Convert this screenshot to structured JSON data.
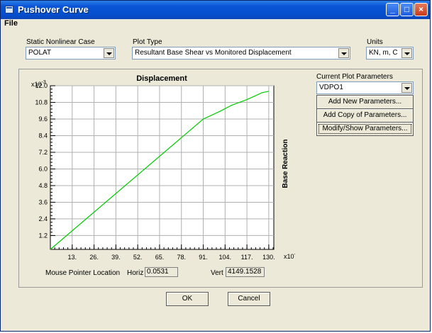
{
  "window": {
    "title": "Pushover Curve",
    "min_label": "_",
    "max_label": "□",
    "close_label": "×"
  },
  "menu": {
    "file": "File"
  },
  "case": {
    "label": "Static Nonlinear Case",
    "value": "POLAT"
  },
  "plot_type": {
    "label": "Plot Type",
    "value": "Resultant Base Shear vs Monitored Displacement"
  },
  "units": {
    "label": "Units",
    "value": "KN, m, C"
  },
  "params": {
    "label": "Current Plot Parameters",
    "value": "VDPO1",
    "add_new": "Add New Parameters...",
    "add_copy": "Add Copy of Parameters...",
    "modify": "Modify/Show Parameters..."
  },
  "mouse": {
    "label": "Mouse Pointer Location",
    "horiz_label": "Horiz",
    "horiz": "0.0531",
    "vert_label": "Vert",
    "vert": "4149.1528"
  },
  "buttons": {
    "ok": "OK",
    "cancel": "Cancel"
  },
  "chart_data": {
    "type": "line",
    "title": "Displacement",
    "xlabel": "",
    "ylabel": "Base Reaction",
    "x_multiplier": "x10-3",
    "y_multiplier": "x10-3",
    "xlim": [
      0,
      133
    ],
    "ylim": [
      0.2,
      12.0
    ],
    "xticks": [
      "13.",
      "26.",
      "39.",
      "52.",
      "65.",
      "78.",
      "91.",
      "104.",
      "117.",
      "130."
    ],
    "yticks": [
      "12.0",
      "10.8",
      "9.6",
      "8.4",
      "7.2",
      "6.0",
      "4.8",
      "3.6",
      "2.4",
      "1.2"
    ],
    "grid": true,
    "line_color": "#00cc00",
    "series": [
      {
        "x": [
          0,
          91,
          100,
          108,
          117,
          126,
          130
        ],
        "y": [
          0.2,
          9.6,
          10.1,
          10.6,
          11.0,
          11.5,
          11.6
        ]
      }
    ]
  }
}
